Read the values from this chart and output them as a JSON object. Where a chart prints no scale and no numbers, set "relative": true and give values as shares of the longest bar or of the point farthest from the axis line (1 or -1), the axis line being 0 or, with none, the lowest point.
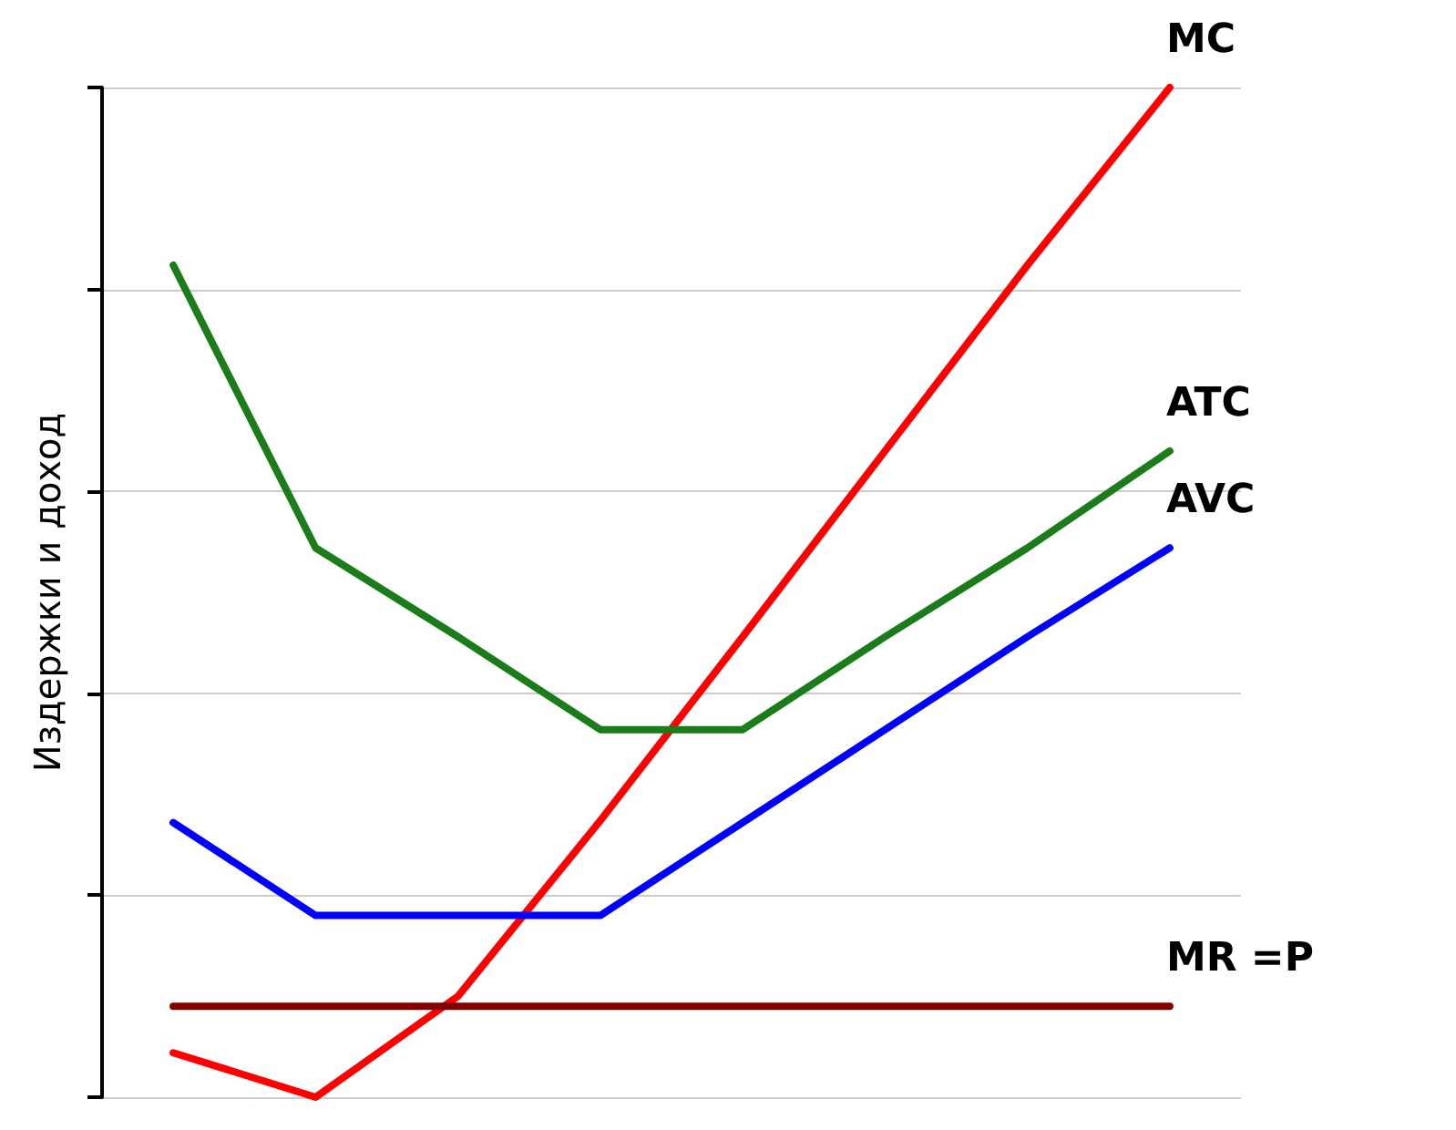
{
  "chart_data": {
    "type": "line",
    "relative": true,
    "ylabel": "Издержки и доход",
    "categories": [
      null,
      null,
      null,
      null,
      null,
      null,
      null,
      null
    ],
    "series": [
      {
        "name": "MC",
        "color": "#ff0000",
        "values": [
          0.044,
          0,
          0.1,
          0.274,
          0.456,
          0.64,
          0.824,
          1
        ]
      },
      {
        "name": "ATC",
        "color": "#1a7d1a",
        "values": [
          0.824,
          0.544,
          0.456,
          0.364,
          0.364,
          0.456,
          0.544,
          0.64
        ]
      },
      {
        "name": "AVC",
        "color": "#0000ff",
        "values": [
          0.272,
          0.18,
          0.18,
          0.18,
          0.272,
          0.364,
          0.456,
          0.544
        ]
      },
      {
        "name": "MR =P",
        "color": "#800000",
        "values": [
          0.09,
          0.09,
          0.09,
          0.09,
          0.09,
          0.09,
          0.09,
          0.09
        ]
      }
    ],
    "grid": "y",
    "legend": false,
    "marker": "none",
    "line_style": "solid"
  }
}
